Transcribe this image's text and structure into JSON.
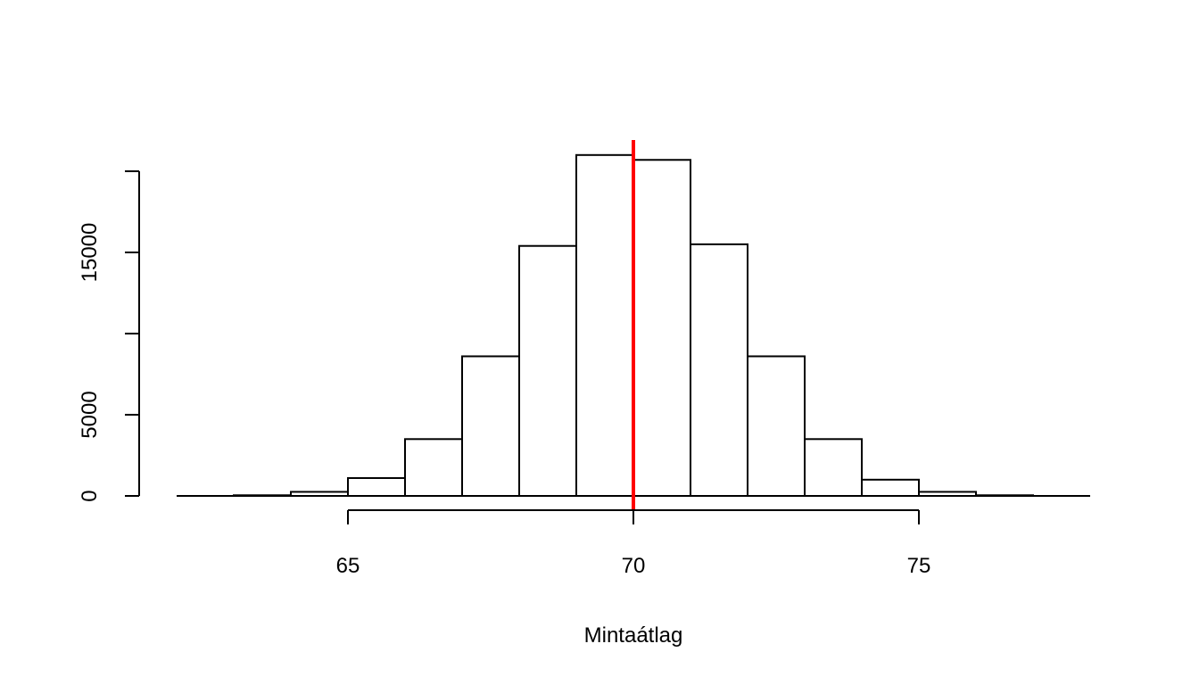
{
  "chart_data": {
    "type": "bar",
    "bins": [
      {
        "x0": 63,
        "x1": 64,
        "count": 40
      },
      {
        "x0": 64,
        "x1": 65,
        "count": 250
      },
      {
        "x0": 65,
        "x1": 66,
        "count": 1100
      },
      {
        "x0": 66,
        "x1": 67,
        "count": 3500
      },
      {
        "x0": 67,
        "x1": 68,
        "count": 8600
      },
      {
        "x0": 68,
        "x1": 69,
        "count": 15400
      },
      {
        "x0": 69,
        "x1": 70,
        "count": 21000
      },
      {
        "x0": 70,
        "x1": 71,
        "count": 20700
      },
      {
        "x0": 71,
        "x1": 72,
        "count": 15500
      },
      {
        "x0": 72,
        "x1": 73,
        "count": 8600
      },
      {
        "x0": 73,
        "x1": 74,
        "count": 3500
      },
      {
        "x0": 74,
        "x1": 75,
        "count": 1000
      },
      {
        "x0": 75,
        "x1": 76,
        "count": 250
      },
      {
        "x0": 76,
        "x1": 77,
        "count": 40
      }
    ],
    "xlabel": "Mintaátlag",
    "ylabel": "",
    "x_ticks": [
      "65",
      "70",
      "75"
    ],
    "y_ticks": [
      "0",
      "5000",
      "15000"
    ],
    "xlim": [
      62,
      78
    ],
    "ylim": [
      0,
      21000
    ],
    "vline": {
      "x": 70,
      "color": "#ff0000"
    },
    "bar_fill": "#ffffff",
    "bar_stroke": "#000000",
    "grid": false
  }
}
